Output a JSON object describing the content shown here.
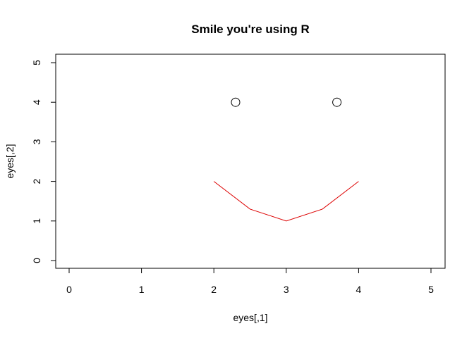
{
  "chart_data": {
    "type": "scatter",
    "title": "Smile you're using R",
    "xlabel": "eyes[,1]",
    "ylabel": "eyes[,2]",
    "xlim": [
      0,
      5
    ],
    "ylim": [
      0,
      5
    ],
    "x_ticks": [
      "0",
      "1",
      "2",
      "3",
      "4",
      "5"
    ],
    "y_ticks": [
      "0",
      "1",
      "2",
      "3",
      "4",
      "5"
    ],
    "grid": false,
    "series": [
      {
        "type": "scatter",
        "marker": "open-circle",
        "color": "#000000",
        "x": [
          2.3,
          3.7
        ],
        "y": [
          4,
          4
        ]
      },
      {
        "type": "line",
        "color": "#dd0000",
        "x": [
          2,
          2.5,
          3,
          3.5,
          4
        ],
        "y": [
          2,
          1.3,
          1,
          1.3,
          2
        ]
      }
    ]
  }
}
